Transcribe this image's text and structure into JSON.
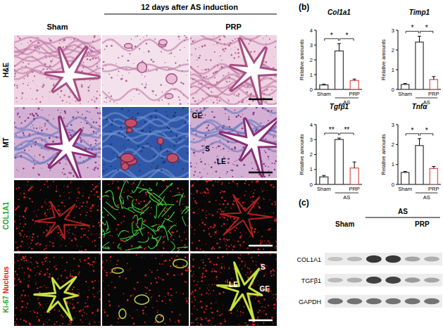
{
  "figure_a": {
    "header": "12 days after AS induction",
    "columns": [
      "Sham",
      null,
      "PRP"
    ],
    "rows": [
      {
        "parts": [
          {
            "text": "H&E",
            "color": "#000000"
          }
        ]
      },
      {
        "parts": [
          {
            "text": "MT",
            "color": "#000000"
          }
        ]
      },
      {
        "parts": [
          {
            "text": "COL1A1",
            "color": "#22aa22"
          }
        ]
      },
      {
        "parts": [
          {
            "text": "Ki-67",
            "color": "#22aa22"
          },
          {
            "text": "Nucleus",
            "color": "#dd2222"
          }
        ]
      }
    ],
    "image_labels": [
      {
        "row": 1,
        "column": 2,
        "texts": [
          "GE",
          "S",
          "LE"
        ]
      },
      {
        "row": 3,
        "column": 2,
        "texts": [
          "S",
          "LE",
          "GE"
        ]
      }
    ]
  },
  "panel_b_label": "(b)",
  "chart_data": [
    {
      "type": "bar",
      "title": "Col1a1",
      "y_label": "Relative amounts",
      "categories": [
        "Sham",
        null,
        "PRP"
      ],
      "values": [
        0.3,
        2.6,
        0.6
      ],
      "errors": [
        0.05,
        0.5,
        0.1
      ],
      "colors": [
        "#444444",
        "#444444",
        "#e05a5a"
      ],
      "ylim": [
        0,
        4
      ],
      "yticks": [
        0,
        1,
        2,
        3,
        4
      ],
      "group": {
        "label": "AS",
        "members": [
          1,
          2
        ]
      },
      "significance": [
        {
          "pair": [
            0,
            1
          ],
          "label": "*"
        },
        {
          "pair": [
            1,
            2
          ],
          "label": "*"
        }
      ]
    },
    {
      "type": "bar",
      "title": "Timp1",
      "y_label": "Relative amounts",
      "categories": [
        "Sham",
        null,
        "PRP"
      ],
      "values": [
        0.25,
        2.4,
        0.5
      ],
      "errors": [
        0.05,
        0.3,
        0.15
      ],
      "colors": [
        "#444444",
        "#444444",
        "#e05a5a"
      ],
      "ylim": [
        0,
        3
      ],
      "yticks": [
        0,
        1,
        2,
        3
      ],
      "group": {
        "label": "AS",
        "members": [
          1,
          2
        ]
      },
      "significance": [
        {
          "pair": [
            0,
            1
          ],
          "label": "*"
        },
        {
          "pair": [
            1,
            2
          ],
          "label": "*"
        }
      ]
    },
    {
      "type": "bar",
      "title": "Tgfβ1",
      "y_label": "Relative amounts",
      "categories": [
        "Sham",
        null,
        "PRP"
      ],
      "values": [
        0.5,
        3.0,
        1.1
      ],
      "errors": [
        0.1,
        0.1,
        0.4
      ],
      "colors": [
        "#444444",
        "#444444",
        "#e05a5a"
      ],
      "ylim": [
        0,
        4
      ],
      "yticks": [
        0,
        1,
        2,
        3,
        4
      ],
      "group": {
        "label": "AS",
        "members": [
          1,
          2
        ]
      },
      "significance": [
        {
          "pair": [
            0,
            1
          ],
          "label": "**"
        },
        {
          "pair": [
            1,
            2
          ],
          "label": "**"
        }
      ]
    },
    {
      "type": "bar",
      "title": "Tnfα",
      "y_label": "Relative amounts",
      "categories": [
        "Sham",
        null,
        "PRP"
      ],
      "values": [
        0.6,
        1.95,
        0.8
      ],
      "errors": [
        0.05,
        0.35,
        0.1
      ],
      "colors": [
        "#444444",
        "#444444",
        "#e05a5a"
      ],
      "ylim": [
        0,
        3
      ],
      "yticks": [
        0,
        1,
        2,
        3
      ],
      "group": {
        "label": "AS",
        "members": [
          1,
          2
        ]
      },
      "significance": [
        {
          "pair": [
            0,
            1
          ],
          "label": "*"
        },
        {
          "pair": [
            1,
            2
          ],
          "label": "*"
        }
      ]
    }
  ],
  "figure_c": {
    "label": "(c)",
    "groups": [
      {
        "label": "Sham",
        "lanes": [
          0,
          1
        ]
      },
      {
        "label": "AS",
        "lanes": [
          2,
          5
        ]
      },
      {
        "label": "PRP",
        "lanes": [
          4,
          5
        ]
      }
    ],
    "rows": [
      {
        "name": "COL1A1",
        "intensities": [
          0.2,
          0.25,
          0.9,
          0.9,
          0.35,
          0.3
        ]
      },
      {
        "name": "TGFβ1",
        "intensities": [
          0.25,
          0.3,
          0.85,
          0.85,
          0.4,
          0.35
        ]
      },
      {
        "name": "GAPDH",
        "intensities": [
          0.6,
          0.6,
          0.62,
          0.6,
          0.6,
          0.6
        ]
      }
    ]
  }
}
